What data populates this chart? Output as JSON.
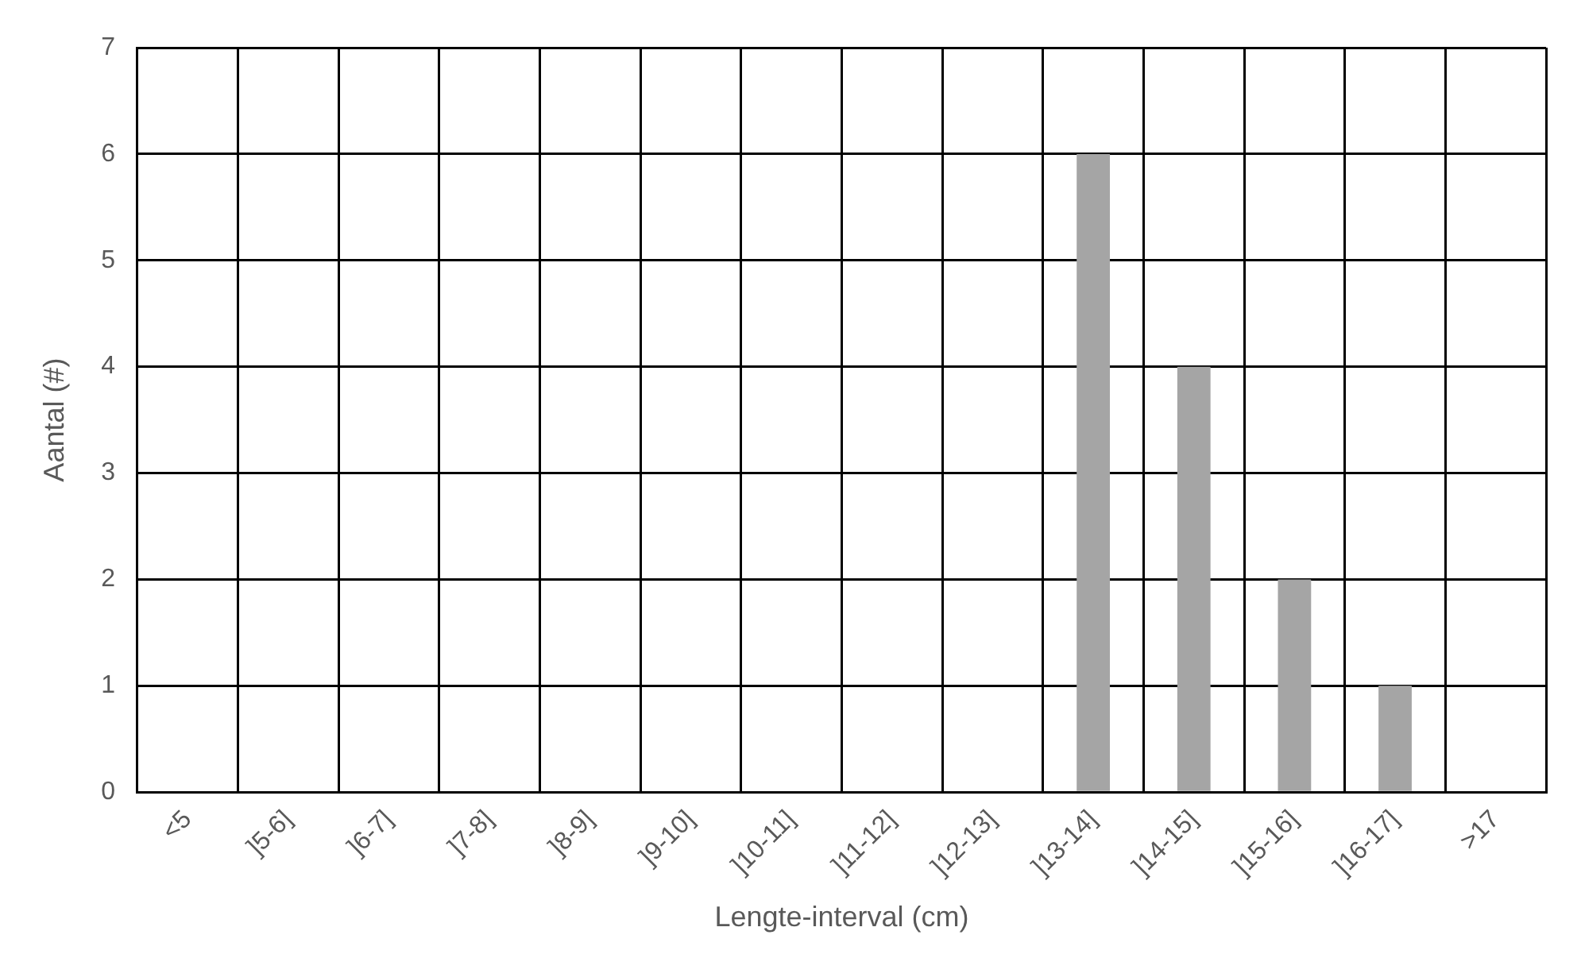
{
  "chart_data": {
    "type": "bar",
    "xlabel": "Lengte-interval (cm)",
    "ylabel": "Aantal (#)",
    "categories": [
      "<5",
      "]5-6]",
      "]6-7]",
      "]7-8]",
      "]8-9]",
      "]9-10]",
      "]10-11]",
      "]11-12]",
      "]12-13]",
      "]13-14]",
      "]14-15]",
      "]15-16]",
      "]16-17]",
      ">17"
    ],
    "values": [
      0,
      0,
      0,
      0,
      0,
      0,
      0,
      0,
      0,
      6,
      4,
      2,
      1,
      0
    ],
    "color": "#a5a5a5",
    "ylim": [
      0,
      7
    ],
    "yticks": [
      0,
      1,
      2,
      3,
      4,
      5,
      6,
      7
    ],
    "grid": true,
    "legend": false
  }
}
